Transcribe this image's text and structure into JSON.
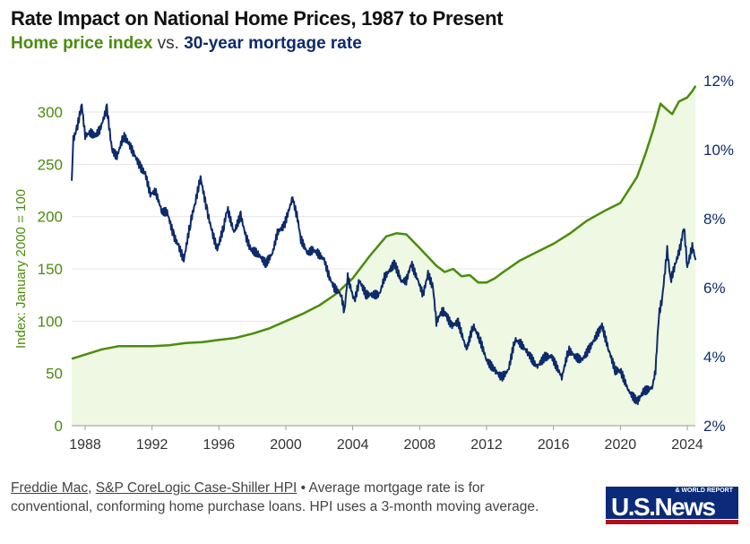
{
  "title": "Rate Impact on National Home Prices, 1987 to Present",
  "subtitle": {
    "part1": "Home price index",
    "vs": " vs. ",
    "part2": "30-year mortgage rate"
  },
  "colors": {
    "hpi": "#4a8c0c",
    "rate": "#0d2a6b",
    "hpi_fill": "#eef8e2",
    "grid": "#e6e6e6"
  },
  "footer": {
    "source1": "Freddie Mac",
    "sep": ", ",
    "source2": "S&P CoreLogic Case-Shiller HPI",
    "note": " • Average mortgage rate is for conventional, conforming home purchase loans. HPI uses a 3-month moving average."
  },
  "logo": {
    "main": "U.S.News",
    "sub": "& WORLD REPORT"
  },
  "chart_data": {
    "type": "line",
    "title": "Rate Impact on National Home Prices, 1987 to Present",
    "ylabel_left": "Index: January 2000 = 100",
    "ylabel_right": "",
    "xlim": [
      1987.2,
      2024.5
    ],
    "ylim_left": [
      0,
      330
    ],
    "ylim_right": [
      2,
      12
    ],
    "x_ticks": [
      "1988",
      "1992",
      "1996",
      "2000",
      "2004",
      "2008",
      "2012",
      "2016",
      "2020",
      "2024"
    ],
    "y_ticks_left": [
      "0",
      "50",
      "100",
      "150",
      "200",
      "250",
      "300"
    ],
    "y_ticks_right": [
      "2%",
      "4%",
      "6%",
      "8%",
      "10%",
      "12%"
    ],
    "grid": true,
    "series": [
      {
        "name": "Home price index",
        "axis": "left",
        "x": [
          1987.2,
          1988,
          1989,
          1990,
          1991,
          1992,
          1993,
          1994,
          1995,
          1996,
          1997,
          1998,
          1999,
          2000,
          2001,
          2002,
          2003,
          2004,
          2005,
          2006,
          2006.6,
          2007.2,
          2008,
          2009,
          2009.5,
          2010,
          2010.5,
          2011,
          2011.5,
          2012,
          2012.5,
          2013,
          2014,
          2015,
          2016,
          2017,
          2018,
          2019,
          2020,
          2021,
          2021.5,
          2022,
          2022.4,
          2022.8,
          2023.1,
          2023.5,
          2024,
          2024.3,
          2024.5
        ],
        "values": [
          64,
          68,
          73,
          76,
          76,
          76,
          77,
          79,
          80,
          82,
          84,
          88,
          93,
          100,
          107,
          115,
          126,
          141,
          162,
          181,
          184,
          183,
          170,
          153,
          147,
          150,
          143,
          144,
          137,
          137,
          141,
          147,
          158,
          166,
          174,
          184,
          196,
          205,
          213,
          238,
          260,
          285,
          308,
          302,
          298,
          310,
          314,
          320,
          325
        ]
      },
      {
        "name": "30-year mortgage rate",
        "axis": "right",
        "x": [
          1987.2,
          1987.3,
          1987.5,
          1987.8,
          1988,
          1988.3,
          1988.6,
          1988.9,
          1989.3,
          1989.6,
          1989.9,
          1990.3,
          1990.6,
          1990.9,
          1991.3,
          1991.6,
          1991.9,
          1992.2,
          1992.6,
          1992.9,
          1993.3,
          1993.6,
          1993.9,
          1994.3,
          1994.6,
          1994.9,
          1995.3,
          1995.6,
          1995.9,
          1996.3,
          1996.5,
          1996.9,
          1997.3,
          1997.6,
          1997.9,
          1998.3,
          1998.8,
          1999.2,
          1999.5,
          1999.9,
          2000.4,
          2000.7,
          2000.9,
          2001.3,
          2001.6,
          2001.9,
          2002.3,
          2002.6,
          2002.9,
          2003.3,
          2003.5,
          2003.7,
          2004.1,
          2004.4,
          2004.8,
          2005.2,
          2005.6,
          2005.9,
          2006.5,
          2006.9,
          2007.2,
          2007.5,
          2007.9,
          2008.2,
          2008.5,
          2008.8,
          2009,
          2009.3,
          2009.5,
          2009.9,
          2010.3,
          2010.8,
          2011.2,
          2011.6,
          2012,
          2012.5,
          2012.9,
          2013.3,
          2013.7,
          2014,
          2014.5,
          2015,
          2015.5,
          2015.9,
          2016.5,
          2016.9,
          2017.3,
          2017.7,
          2018.1,
          2018.9,
          2019.3,
          2019.7,
          2020,
          2020.5,
          2021,
          2021.4,
          2021.9,
          2022.1,
          2022.3,
          2022.5,
          2022.8,
          2023,
          2023.3,
          2023.6,
          2023.8,
          2024,
          2024.3,
          2024.5
        ],
        "values": [
          9.1,
          10.3,
          10.6,
          11.3,
          10.4,
          10.5,
          10.4,
          10.6,
          11.2,
          10.0,
          9.8,
          10.4,
          10.2,
          9.9,
          9.5,
          9.3,
          8.7,
          8.8,
          8.2,
          8.2,
          7.5,
          7.2,
          6.8,
          7.9,
          8.5,
          9.2,
          8.2,
          7.6,
          7.1,
          7.8,
          8.3,
          7.6,
          8.1,
          7.5,
          7.1,
          7.0,
          6.7,
          7.0,
          7.6,
          7.8,
          8.6,
          8.0,
          7.4,
          7.0,
          7.1,
          7.0,
          6.8,
          6.3,
          6.0,
          5.8,
          5.3,
          6.3,
          5.6,
          6.2,
          5.8,
          5.8,
          5.8,
          6.3,
          6.7,
          6.2,
          6.2,
          6.7,
          6.2,
          5.8,
          6.4,
          6.0,
          5.0,
          5.3,
          5.3,
          4.9,
          5.0,
          4.2,
          4.9,
          4.5,
          3.9,
          3.6,
          3.4,
          3.6,
          4.5,
          4.4,
          4.1,
          3.7,
          4.0,
          4.0,
          3.4,
          4.2,
          4.0,
          3.9,
          4.2,
          4.9,
          4.2,
          3.6,
          3.6,
          3.0,
          2.7,
          3.0,
          3.1,
          3.6,
          5.2,
          5.7,
          7.1,
          6.2,
          6.7,
          7.2,
          7.8,
          6.6,
          7.2,
          6.8
        ]
      }
    ]
  }
}
